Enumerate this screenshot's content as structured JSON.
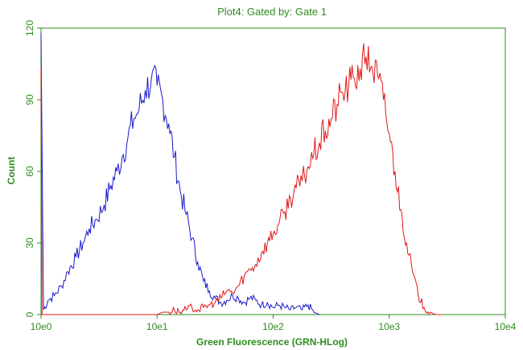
{
  "chart_data": {
    "type": "line",
    "title": "Plot4:  Gated by: Gate 1",
    "xlabel": "Green Fluorescence (GRN-HLog)",
    "ylabel": "Count",
    "x_scale": "log",
    "xlim": [
      1,
      10000
    ],
    "ylim": [
      0,
      120
    ],
    "x_tick_labels": [
      "10e0",
      "10e1",
      "10e2",
      "10e3",
      "10e4"
    ],
    "x_tick_values": [
      1,
      10,
      100,
      1000,
      10000
    ],
    "y_ticks": [
      0,
      30,
      60,
      90,
      120
    ],
    "grid": false,
    "axis_color": "#2e8b1e",
    "series": [
      {
        "color": "#1a1acd",
        "x": [
          1.0,
          1.05,
          1.15,
          1.3,
          1.5,
          1.7,
          2.0,
          2.3,
          2.6,
          3.0,
          3.5,
          4.0,
          4.5,
          5.0,
          5.6,
          6.3,
          7.0,
          7.9,
          8.9,
          10.0,
          11.2,
          12.6,
          14.1,
          15.8,
          17.8,
          20.0,
          22.4,
          25.1,
          28.2,
          31.6,
          35.5,
          39.8,
          44.7,
          50.1,
          56.2,
          63.1,
          70.8,
          79.4,
          89.1,
          100.0,
          112.0,
          126.0,
          141.0,
          158.0,
          178.0,
          200.0,
          224.0,
          251.0
        ],
        "y": [
          118,
          2,
          6,
          8,
          12,
          18,
          24,
          30,
          36,
          40,
          46,
          54,
          60,
          66,
          74,
          82,
          86,
          94,
          98,
          96,
          90,
          80,
          66,
          52,
          42,
          32,
          22,
          14,
          10,
          7,
          5,
          6,
          8,
          7,
          5,
          7,
          6,
          4,
          5,
          3,
          4,
          3,
          2,
          3,
          2,
          4,
          1,
          0
        ]
      },
      {
        "color": "#e01818",
        "x": [
          1.0,
          1.02,
          1.05,
          10.0,
          11.2,
          12.6,
          14.1,
          15.8,
          17.8,
          20.0,
          22.4,
          25.1,
          28.2,
          31.6,
          35.5,
          39.8,
          44.7,
          50.1,
          56.2,
          63.1,
          70.8,
          79.4,
          89.1,
          100.0,
          112.0,
          126.0,
          141.0,
          158.0,
          178.0,
          200.0,
          224.0,
          251.0,
          282.0,
          316.0,
          355.0,
          398.0,
          447.0,
          501.0,
          562.0,
          631.0,
          708.0,
          794.0,
          891.0,
          1000.0,
          1122.0,
          1259.0,
          1413.0,
          1585.0,
          1778.0,
          1995.0,
          2239.0,
          2512.0,
          2818.0
        ],
        "y": [
          104,
          0,
          0,
          0,
          1,
          1,
          2,
          1,
          2,
          3,
          2,
          3,
          4,
          5,
          7,
          10,
          9,
          12,
          16,
          19,
          21,
          26,
          30,
          34,
          38,
          43,
          49,
          53,
          56,
          62,
          67,
          72,
          77,
          82,
          88,
          93,
          96,
          99,
          103,
          108,
          104,
          100,
          90,
          76,
          60,
          44,
          30,
          18,
          8,
          3,
          1,
          0,
          0
        ]
      }
    ]
  }
}
